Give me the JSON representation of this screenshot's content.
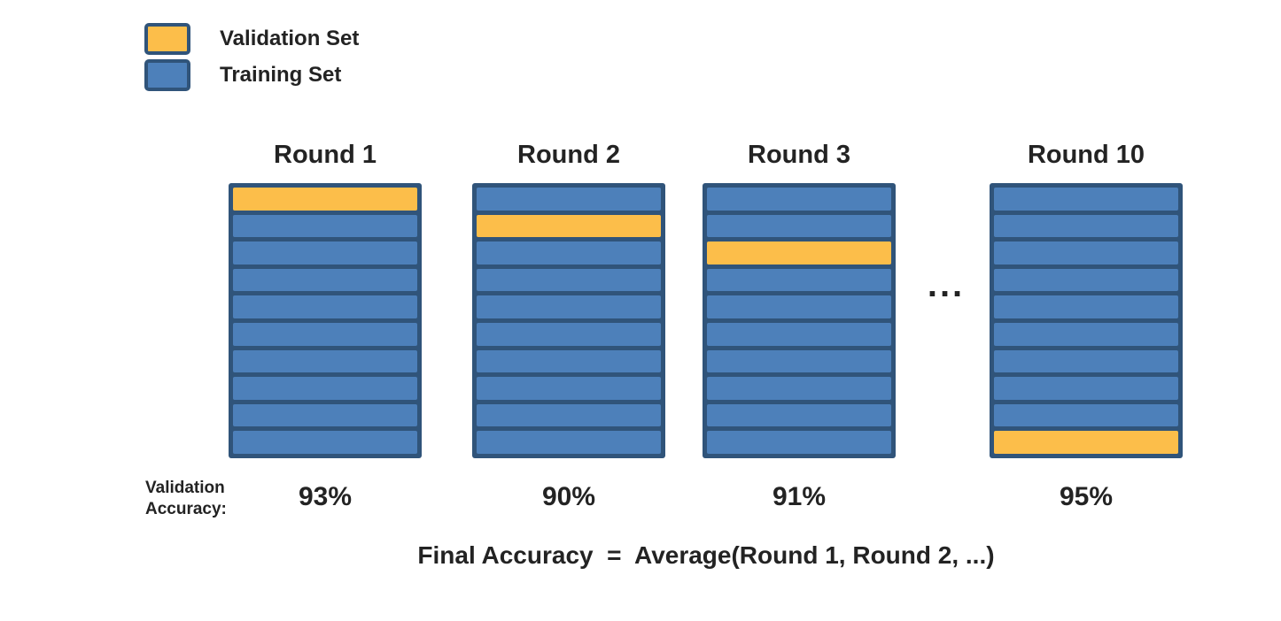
{
  "colors": {
    "validation": "#FCBE4A",
    "training": "#4D80BA",
    "border": "#30547A",
    "text": "#232323",
    "background": "#FFFFFF"
  },
  "legend": {
    "items": [
      {
        "label": "Validation Set",
        "color_key": "validation"
      },
      {
        "label": "Training Set",
        "color_key": "training"
      }
    ]
  },
  "chart": {
    "type": "k-fold-cross-validation-diagram",
    "folds_per_round": 10,
    "rounds": [
      {
        "title": "Round 1",
        "validation_fold_index": 0,
        "accuracy": "93%"
      },
      {
        "title": "Round 2",
        "validation_fold_index": 1,
        "accuracy": "90%"
      },
      {
        "title": "Round 3",
        "validation_fold_index": 2,
        "accuracy": "91%"
      },
      {
        "title": "Round 10",
        "validation_fold_index": 9,
        "accuracy": "95%"
      }
    ],
    "ellipsis": "...",
    "accuracy_caption": "Validation\nAccuracy:",
    "formula": "Final Accuracy  =  Average(Round 1, Round 2, ...)"
  }
}
